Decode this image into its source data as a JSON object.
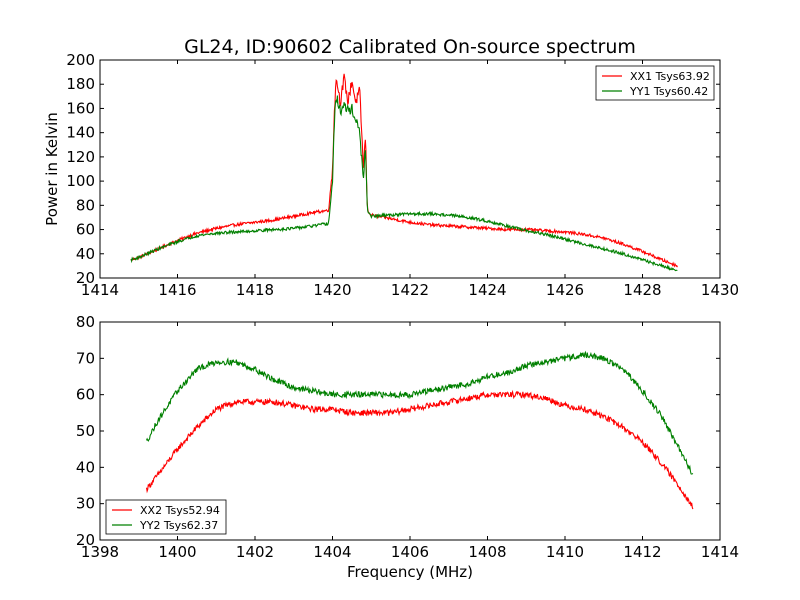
{
  "figure": {
    "title": "GL24, ID:90602 Calibrated On-source spectrum",
    "xlabel": "Frequency (MHz)"
  },
  "chart_data": [
    {
      "type": "line",
      "title": "GL24, ID:90602 Calibrated On-source spectrum",
      "xlabel": "",
      "ylabel": "Power in Kelvin",
      "xlim": [
        1414,
        1430
      ],
      "ylim": [
        20,
        200
      ],
      "xticks": [
        "1414",
        "1416",
        "1418",
        "1420",
        "1422",
        "1424",
        "1426",
        "1428",
        "1430"
      ],
      "yticks": [
        "20",
        "40",
        "60",
        "80",
        "100",
        "120",
        "140",
        "160",
        "180",
        "200"
      ],
      "grid": false,
      "legend_position": "top-right",
      "series": [
        {
          "name": "XX1 Tsys63.92",
          "color": "#ff0000",
          "x": [
            1414.8,
            1415.0,
            1415.5,
            1416.0,
            1416.5,
            1417.0,
            1417.5,
            1418.0,
            1418.5,
            1419.0,
            1419.5,
            1419.9,
            1420.0,
            1420.05,
            1420.1,
            1420.2,
            1420.3,
            1420.4,
            1420.5,
            1420.6,
            1420.7,
            1420.8,
            1420.85,
            1420.9,
            1421.0,
            1421.5,
            1422.0,
            1422.5,
            1423.0,
            1423.5,
            1424.0,
            1424.5,
            1425.0,
            1425.5,
            1426.0,
            1426.5,
            1427.0,
            1427.5,
            1428.0,
            1428.5,
            1428.9
          ],
          "values": [
            35,
            37,
            44,
            51,
            57,
            61,
            64,
            66,
            68,
            71,
            74,
            76,
            110,
            160,
            186,
            165,
            185,
            165,
            183,
            165,
            175,
            110,
            138,
            76,
            72,
            69,
            66,
            64,
            63,
            62,
            61,
            60,
            60,
            59,
            58,
            56,
            53,
            48,
            42,
            35,
            30
          ]
        },
        {
          "name": "YY1 Tsys60.42",
          "color": "#008000",
          "x": [
            1414.8,
            1415.0,
            1415.5,
            1416.0,
            1416.5,
            1417.0,
            1417.5,
            1418.0,
            1418.5,
            1419.0,
            1419.5,
            1419.9,
            1420.0,
            1420.05,
            1420.1,
            1420.2,
            1420.3,
            1420.4,
            1420.5,
            1420.6,
            1420.7,
            1420.8,
            1420.85,
            1420.9,
            1421.0,
            1421.5,
            1422.0,
            1422.5,
            1423.0,
            1423.5,
            1424.0,
            1424.5,
            1425.0,
            1425.5,
            1426.0,
            1426.5,
            1427.0,
            1427.5,
            1428.0,
            1428.5,
            1428.9
          ],
          "values": [
            35,
            37,
            44,
            50,
            55,
            57,
            58,
            59,
            60,
            61,
            63,
            65,
            100,
            150,
            170,
            158,
            162,
            158,
            160,
            150,
            140,
            100,
            128,
            76,
            71,
            72,
            73,
            73,
            72,
            70,
            67,
            63,
            59,
            56,
            52,
            48,
            44,
            40,
            35,
            30,
            26
          ]
        }
      ]
    },
    {
      "type": "line",
      "title": "",
      "xlabel": "Frequency (MHz)",
      "ylabel": "",
      "xlim": [
        1398,
        1414
      ],
      "ylim": [
        20,
        80
      ],
      "xticks": [
        "1398",
        "1400",
        "1402",
        "1404",
        "1406",
        "1408",
        "1410",
        "1412",
        "1414"
      ],
      "yticks": [
        "20",
        "30",
        "40",
        "50",
        "60",
        "70",
        "80"
      ],
      "grid": false,
      "legend_position": "bottom-left",
      "series": [
        {
          "name": "XX2 Tsys52.94",
          "color": "#ff0000",
          "x": [
            1399.2,
            1399.5,
            1400.0,
            1400.5,
            1401.0,
            1401.5,
            1402.0,
            1402.5,
            1403.0,
            1403.5,
            1404.0,
            1404.5,
            1405.0,
            1405.5,
            1406.0,
            1406.5,
            1407.0,
            1407.5,
            1408.0,
            1408.5,
            1409.0,
            1409.5,
            1410.0,
            1410.5,
            1411.0,
            1411.5,
            1412.0,
            1412.5,
            1413.0,
            1413.3
          ],
          "values": [
            34,
            38,
            45,
            51,
            56,
            58,
            58,
            58,
            57,
            56,
            56,
            55,
            55,
            55,
            56,
            57,
            58,
            59,
            60,
            60,
            60,
            59,
            57,
            56,
            54,
            51,
            47,
            41,
            34,
            29
          ]
        },
        {
          "name": "YY2 Tsys62.37",
          "color": "#008000",
          "x": [
            1399.2,
            1399.5,
            1400.0,
            1400.5,
            1401.0,
            1401.5,
            1402.0,
            1402.5,
            1403.0,
            1403.5,
            1404.0,
            1404.5,
            1405.0,
            1405.5,
            1406.0,
            1406.5,
            1407.0,
            1407.5,
            1408.0,
            1408.5,
            1409.0,
            1409.5,
            1410.0,
            1410.5,
            1411.0,
            1411.5,
            1412.0,
            1412.5,
            1413.0,
            1413.3
          ],
          "values": [
            47,
            53,
            61,
            67,
            69,
            69,
            67,
            64,
            62,
            61,
            60,
            60,
            60,
            60,
            60,
            61,
            62,
            63,
            65,
            66,
            68,
            69,
            70,
            71,
            70,
            67,
            61,
            54,
            44,
            38
          ]
        }
      ]
    }
  ]
}
